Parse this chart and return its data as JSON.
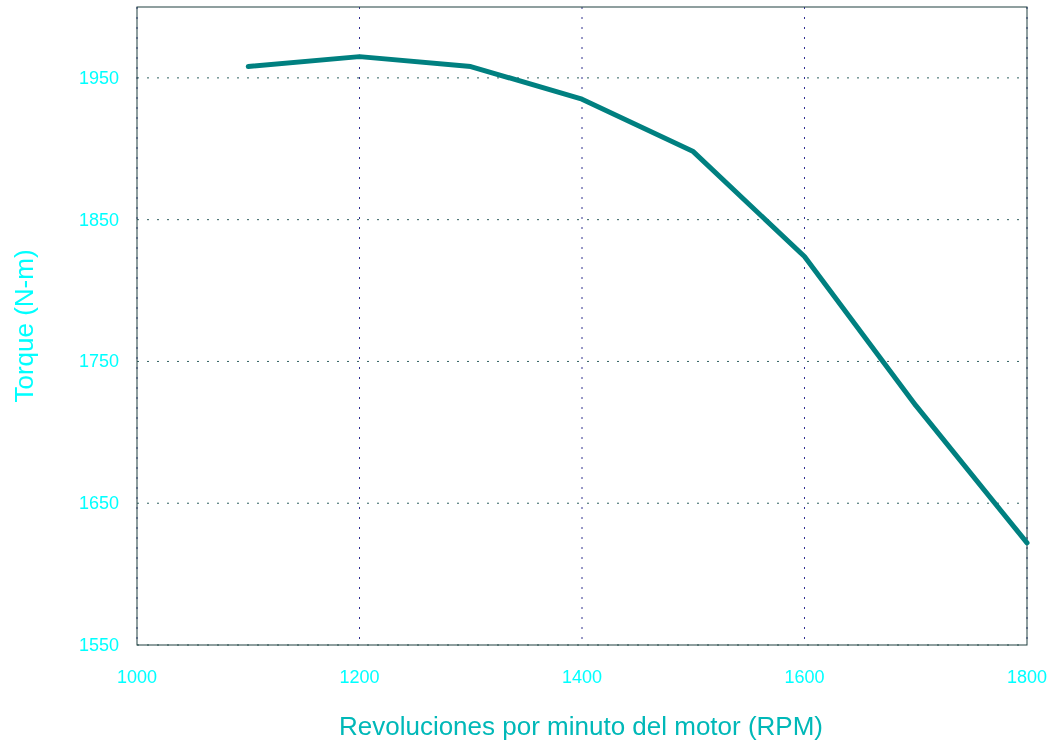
{
  "chart_data": {
    "type": "line",
    "xlabel": "Revoluciones por minuto del motor (RPM)",
    "ylabel": "Torque  (N-m)",
    "x": [
      1100,
      1200,
      1300,
      1400,
      1500,
      1600,
      1700,
      1800
    ],
    "series": [
      {
        "color": "#008080",
        "values": [
          1958,
          1965,
          1958,
          1935,
          1898,
          1824,
          1719,
          1622
        ]
      }
    ],
    "xlim": [
      1000,
      1800
    ],
    "ylim": [
      1550,
      2000
    ],
    "xticks": [
      1000,
      1200,
      1400,
      1600,
      1800
    ],
    "yticks": [
      1550,
      1650,
      1750,
      1850,
      1950
    ],
    "grid": true
  }
}
